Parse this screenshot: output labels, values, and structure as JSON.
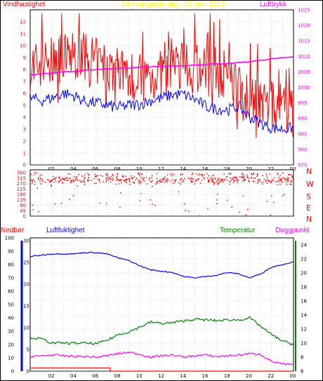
{
  "header": {
    "title": "24 hour graph day : 07 Juni 2019",
    "left_label": "Vindhastighet",
    "right_label": "Lufttrykk"
  },
  "lower_header": {
    "rain_label": "Nedbør",
    "humidity_label": "Luftfuktighet",
    "temp_label": "Temperatur",
    "dew_label": "Duggpunkt"
  },
  "colors": {
    "wind": "#ff0000",
    "wind_avg": "#0000ff",
    "pressure": "#ff00ff",
    "humidity": "#0000ff",
    "temperature": "#008000",
    "dewpoint": "#ff00ff",
    "rain": "#ff0000",
    "title": "#ffff00",
    "temp_axis": "#008000",
    "rain_axis": "#0000ff"
  },
  "chart_data": [
    {
      "id": "wind_pressure",
      "type": "line",
      "x_tick_labels": [
        "02",
        "04",
        "06",
        "08",
        "10",
        "12",
        "14",
        "16",
        "18",
        "20",
        "22",
        "00"
      ],
      "y_left_ticks": [
        0,
        1,
        2,
        3,
        4,
        5,
        6,
        7,
        8,
        9,
        10,
        11,
        12
      ],
      "y_right_ticks": [
        975,
        980,
        985,
        990,
        995,
        1000,
        1005,
        1010,
        1015,
        1020,
        1025
      ],
      "y_left_range": [
        0,
        13
      ],
      "y_right_range": [
        975,
        1025
      ],
      "series": [
        {
          "key": "gust",
          "keys": [
            [
              0,
              8.2
            ],
            [
              1,
              8.5
            ],
            [
              2,
              8.6
            ],
            [
              3,
              9.0
            ],
            [
              4,
              9.2
            ],
            [
              5,
              9.0
            ],
            [
              6,
              8.6
            ],
            [
              7,
              8.3
            ],
            [
              8,
              8.0
            ],
            [
              9,
              7.6
            ],
            [
              10,
              7.3
            ],
            [
              11,
              7.4
            ],
            [
              12,
              7.6
            ],
            [
              13,
              7.8
            ],
            [
              14,
              8.0
            ],
            [
              15,
              8.0
            ],
            [
              16,
              7.8
            ],
            [
              17,
              7.7
            ],
            [
              18,
              7.6
            ],
            [
              19,
              6.6
            ],
            [
              20,
              6.0
            ],
            [
              21,
              5.4
            ],
            [
              22,
              5.0
            ],
            [
              23,
              4.9
            ],
            [
              24,
              4.7
            ]
          ]
        },
        {
          "key": "avg",
          "keys": [
            [
              0,
              5.6
            ],
            [
              1,
              5.4
            ],
            [
              2,
              5.6
            ],
            [
              3,
              6.0
            ],
            [
              4,
              5.8
            ],
            [
              5,
              5.3
            ],
            [
              6,
              5.2
            ],
            [
              7,
              5.0
            ],
            [
              8,
              4.8
            ],
            [
              9,
              5.0
            ],
            [
              10,
              5.1
            ],
            [
              11,
              5.4
            ],
            [
              12,
              5.6
            ],
            [
              13,
              5.9
            ],
            [
              14,
              5.9
            ],
            [
              15,
              5.5
            ],
            [
              16,
              4.9
            ],
            [
              17,
              4.7
            ],
            [
              18,
              4.6
            ],
            [
              19,
              4.9
            ],
            [
              20,
              4.0
            ],
            [
              21,
              3.5
            ],
            [
              22,
              3.1
            ],
            [
              23,
              3.0
            ],
            [
              24,
              3.1
            ]
          ]
        },
        {
          "key": "pressure",
          "keys": [
            [
              0,
              1004.0
            ],
            [
              2,
              1004.6
            ],
            [
              4,
              1005.2
            ],
            [
              6,
              1005.7
            ],
            [
              8,
              1006.1
            ],
            [
              10,
              1006.5
            ],
            [
              12,
              1006.8
            ],
            [
              14,
              1007.0
            ],
            [
              16,
              1007.4
            ],
            [
              18,
              1007.7
            ],
            [
              20,
              1008.3
            ],
            [
              22,
              1009.2
            ],
            [
              23,
              1009.5
            ],
            [
              24,
              1009.8
            ]
          ]
        }
      ]
    },
    {
      "id": "wind_direction",
      "type": "scatter",
      "x_tick_labels": [
        "02",
        "04",
        "06",
        "08",
        "10",
        "12",
        "14",
        "16",
        "18",
        "20",
        "22",
        "00"
      ],
      "y_ticks": [
        0,
        45,
        90,
        135,
        180,
        225,
        270,
        315,
        360
      ],
      "y_range": [
        0,
        360
      ],
      "compass_labels": [
        "N",
        "W",
        "S",
        "E",
        "N"
      ]
    },
    {
      "id": "temp_humidity_rain",
      "type": "line",
      "x_tick_labels": [
        "02",
        "04",
        "06",
        "08",
        "10",
        "12",
        "14",
        "16",
        "18",
        "20",
        "22",
        "00"
      ],
      "y_rain_ticks": [
        0,
        10,
        20,
        30,
        40,
        50,
        60,
        70,
        80,
        90,
        100
      ],
      "y_humidity_ticks": [
        0,
        5,
        10,
        15,
        20,
        25,
        30
      ],
      "y_temp_ticks": [
        6,
        8,
        10,
        12,
        14,
        16,
        18,
        20,
        22,
        24
      ],
      "y_temp_range": [
        6,
        25
      ],
      "y_rain_range": [
        0,
        100
      ],
      "series": [
        {
          "key": "humidity",
          "keys": [
            [
              0,
              86
            ],
            [
              1,
              87
            ],
            [
              2,
              88
            ],
            [
              3,
              88
            ],
            [
              4,
              88
            ],
            [
              5,
              89
            ],
            [
              6,
              89
            ],
            [
              7,
              88
            ],
            [
              8,
              85
            ],
            [
              9,
              83
            ],
            [
              10,
              79
            ],
            [
              11,
              76
            ],
            [
              12,
              75
            ],
            [
              13,
              74
            ],
            [
              14,
              71
            ],
            [
              15,
              70
            ],
            [
              16,
              71
            ],
            [
              17,
              72
            ],
            [
              18,
              74
            ],
            [
              19,
              73
            ],
            [
              20,
              70
            ],
            [
              21,
              73
            ],
            [
              22,
              78
            ],
            [
              23,
              80
            ],
            [
              24,
              82
            ]
          ]
        },
        {
          "key": "temperature",
          "keys": [
            [
              0,
              10.8
            ],
            [
              1,
              10.6
            ],
            [
              2,
              10.0
            ],
            [
              3,
              10.0
            ],
            [
              4,
              10.0
            ],
            [
              5,
              10.0
            ],
            [
              6,
              9.9
            ],
            [
              7,
              10.4
            ],
            [
              8,
              11.2
            ],
            [
              9,
              11.6
            ],
            [
              10,
              12.3
            ],
            [
              11,
              13.0
            ],
            [
              12,
              12.8
            ],
            [
              13,
              12.9
            ],
            [
              14,
              13.2
            ],
            [
              15,
              13.4
            ],
            [
              16,
              13.3
            ],
            [
              17,
              13.2
            ],
            [
              18,
              13.3
            ],
            [
              19,
              13.3
            ],
            [
              20,
              13.6
            ],
            [
              21,
              12.4
            ],
            [
              22,
              11.2
            ],
            [
              23,
              10.3
            ],
            [
              24,
              9.8
            ]
          ]
        },
        {
          "key": "dewpoint",
          "keys": [
            [
              0,
              8.0
            ],
            [
              1,
              8.2
            ],
            [
              2,
              8.3
            ],
            [
              3,
              8.2
            ],
            [
              4,
              8.1
            ],
            [
              5,
              8.1
            ],
            [
              6,
              8.0
            ],
            [
              7,
              8.2
            ],
            [
              8,
              8.5
            ],
            [
              9,
              8.7
            ],
            [
              10,
              8.4
            ],
            [
              11,
              8.0
            ],
            [
              12,
              8.2
            ],
            [
              13,
              8.3
            ],
            [
              14,
              8.0
            ],
            [
              15,
              8.2
            ],
            [
              16,
              8.3
            ],
            [
              17,
              8.1
            ],
            [
              18,
              8.2
            ],
            [
              19,
              8.3
            ],
            [
              20,
              8.5
            ],
            [
              21,
              8.4
            ],
            [
              22,
              7.4
            ],
            [
              23,
              7.0
            ],
            [
              24,
              6.9
            ]
          ]
        },
        {
          "key": "rain",
          "keys": [
            [
              0,
              2.5
            ],
            [
              7.3,
              2.5
            ],
            [
              7.3,
              0
            ],
            [
              24,
              0
            ]
          ]
        }
      ]
    }
  ]
}
